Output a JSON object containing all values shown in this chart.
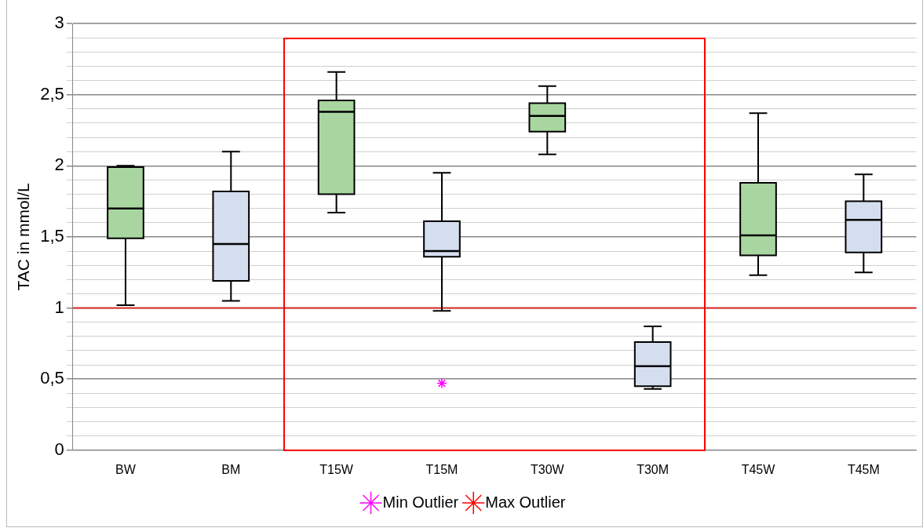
{
  "chart_data": {
    "type": "box",
    "ylabel": "TAC in mmol/L",
    "categories": [
      "BW",
      "BM",
      "T15W",
      "T15M",
      "T30W",
      "T30M",
      "T45W",
      "T45M"
    ],
    "colors": [
      "#a9d6a0",
      "#d5deef",
      "#a9d6a0",
      "#d5deef",
      "#a9d6a0",
      "#d5deef",
      "#a9d6a0",
      "#d5deef"
    ],
    "boxes": [
      {
        "low": 1.02,
        "q1": 1.49,
        "median": 1.7,
        "q3": 1.99,
        "high": 2.0
      },
      {
        "low": 1.05,
        "q1": 1.19,
        "median": 1.45,
        "q3": 1.82,
        "high": 2.1
      },
      {
        "low": 1.67,
        "q1": 1.8,
        "median": 2.38,
        "q3": 2.46,
        "high": 2.66
      },
      {
        "low": 0.98,
        "q1": 1.36,
        "median": 1.4,
        "q3": 1.61,
        "high": 1.95
      },
      {
        "low": 2.08,
        "q1": 2.24,
        "median": 2.35,
        "q3": 2.44,
        "high": 2.56
      },
      {
        "low": 0.43,
        "q1": 0.45,
        "median": 0.59,
        "q3": 0.76,
        "high": 0.87
      },
      {
        "low": 1.23,
        "q1": 1.37,
        "median": 1.51,
        "q3": 1.88,
        "high": 2.37
      },
      {
        "low": 1.25,
        "q1": 1.39,
        "median": 1.62,
        "q3": 1.75,
        "high": 1.94
      }
    ],
    "series": [
      {
        "name": "Min Outlier",
        "type": "scatter",
        "color": "#ff00ff",
        "marker": "cross",
        "x": [
          "T15M"
        ],
        "values": [
          0.47
        ]
      },
      {
        "name": "Max Outlier",
        "type": "scatter",
        "color": "#ff0000",
        "marker": "cross",
        "values": [
          null,
          null,
          null,
          null,
          null,
          null,
          null,
          null
        ]
      }
    ],
    "ylim": [
      0,
      3
    ],
    "yticks": [
      0,
      {
        "value": 0.1,
        "label": null
      },
      {
        "value": 0.2,
        "label": null
      },
      {
        "value": 0.3,
        "label": null
      },
      {
        "value": 0.4,
        "label": null
      },
      {
        "value": 0.5,
        "label": "0,5"
      },
      {
        "value": 0.6,
        "label": null
      },
      {
        "value": 0.7,
        "label": null
      },
      {
        "value": 0.8,
        "label": null
      },
      {
        "value": 0.9,
        "label": null
      },
      1,
      {
        "value": 1.1,
        "label": null
      },
      {
        "value": 1.2,
        "label": null
      },
      {
        "value": 1.3,
        "label": null
      },
      {
        "value": 1.4,
        "label": null
      },
      {
        "value": 1.5,
        "label": "1,5"
      },
      {
        "value": 1.6,
        "label": null
      },
      {
        "value": 1.7,
        "label": null
      },
      {
        "value": 1.8,
        "label": null
      },
      {
        "value": 1.9,
        "label": null
      },
      2,
      {
        "value": 2.1,
        "label": null
      },
      {
        "value": 2.2,
        "label": null
      },
      {
        "value": 2.3,
        "label": null
      },
      {
        "value": 2.4,
        "label": null
      },
      {
        "value": 2.5,
        "label": "2,5"
      },
      {
        "value": 2.6,
        "label": null
      },
      {
        "value": 2.7,
        "label": null
      },
      {
        "value": 2.8,
        "label": null
      },
      {
        "value": 2.9,
        "label": null
      },
      3
    ],
    "ref_lines": [
      {
        "axis": "y",
        "value": 1,
        "color": "#e03030"
      }
    ],
    "grid": "y",
    "legend": "bottom"
  }
}
